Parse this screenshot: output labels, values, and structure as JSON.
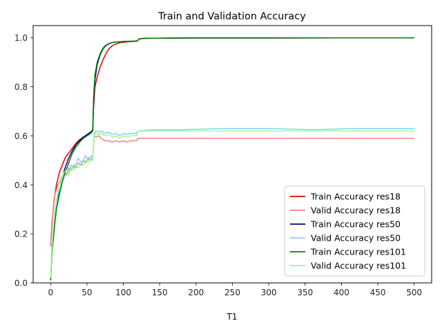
{
  "chart_data": {
    "type": "line",
    "title": "Train and Validation Accuracy",
    "xlabel": "T1",
    "ylabel": "",
    "xlim": [
      -24,
      524
    ],
    "ylim": [
      0,
      1.05
    ],
    "xticks": [
      0,
      50,
      100,
      150,
      200,
      250,
      300,
      350,
      400,
      450,
      500
    ],
    "yticks": [
      0.0,
      0.2,
      0.4,
      0.6,
      0.8,
      1.0
    ],
    "xtick_labels": [
      "0",
      "50",
      "100",
      "150",
      "200",
      "250",
      "300",
      "350",
      "400",
      "450",
      "500"
    ],
    "ytick_labels": [
      "0.0",
      "0.2",
      "0.4",
      "0.6",
      "0.8",
      "1.0"
    ],
    "grid": false,
    "legend_position": "lower-right",
    "series": [
      {
        "name": "Train Accuracy res18",
        "color": "#dd0000",
        "points": [
          [
            0,
            0.15
          ],
          [
            2,
            0.25
          ],
          [
            5,
            0.34
          ],
          [
            8,
            0.4
          ],
          [
            12,
            0.45
          ],
          [
            16,
            0.48
          ],
          [
            20,
            0.51
          ],
          [
            25,
            0.53
          ],
          [
            30,
            0.55
          ],
          [
            35,
            0.57
          ],
          [
            40,
            0.585
          ],
          [
            45,
            0.595
          ],
          [
            50,
            0.605
          ],
          [
            55,
            0.615
          ],
          [
            58,
            0.62
          ],
          [
            59,
            0.71
          ],
          [
            61,
            0.8
          ],
          [
            64,
            0.84
          ],
          [
            68,
            0.88
          ],
          [
            72,
            0.91
          ],
          [
            76,
            0.935
          ],
          [
            80,
            0.955
          ],
          [
            85,
            0.968
          ],
          [
            90,
            0.975
          ],
          [
            95,
            0.98
          ],
          [
            100,
            0.982
          ],
          [
            110,
            0.985
          ],
          [
            118,
            0.986
          ],
          [
            120,
            0.99
          ],
          [
            122,
            0.996
          ],
          [
            130,
            0.998
          ],
          [
            160,
            0.999
          ],
          [
            200,
            0.9995
          ],
          [
            300,
            0.9997
          ],
          [
            400,
            0.9998
          ],
          [
            500,
            0.9998
          ]
        ]
      },
      {
        "name": "Valid Accuracy res18",
        "color": "#f08080",
        "points": [
          [
            0,
            0.15
          ],
          [
            3,
            0.28
          ],
          [
            6,
            0.36
          ],
          [
            10,
            0.4
          ],
          [
            14,
            0.42
          ],
          [
            18,
            0.45
          ],
          [
            22,
            0.44
          ],
          [
            25,
            0.47
          ],
          [
            28,
            0.46
          ],
          [
            32,
            0.48
          ],
          [
            35,
            0.47
          ],
          [
            38,
            0.49
          ],
          [
            42,
            0.48
          ],
          [
            45,
            0.5
          ],
          [
            48,
            0.49
          ],
          [
            52,
            0.51
          ],
          [
            56,
            0.5
          ],
          [
            58,
            0.51
          ],
          [
            59,
            0.55
          ],
          [
            60,
            0.6
          ],
          [
            62,
            0.595
          ],
          [
            66,
            0.6
          ],
          [
            70,
            0.59
          ],
          [
            74,
            0.58
          ],
          [
            80,
            0.58
          ],
          [
            85,
            0.575
          ],
          [
            90,
            0.58
          ],
          [
            95,
            0.575
          ],
          [
            100,
            0.58
          ],
          [
            105,
            0.575
          ],
          [
            110,
            0.58
          ],
          [
            118,
            0.58
          ],
          [
            120,
            0.59
          ],
          [
            122,
            0.59
          ],
          [
            140,
            0.59
          ],
          [
            180,
            0.59
          ],
          [
            240,
            0.59
          ],
          [
            300,
            0.59
          ],
          [
            360,
            0.59
          ],
          [
            420,
            0.59
          ],
          [
            500,
            0.59
          ]
        ]
      },
      {
        "name": "Train Accuracy res50",
        "color": "#000080",
        "points": [
          [
            0,
            0.01
          ],
          [
            2,
            0.15
          ],
          [
            5,
            0.25
          ],
          [
            8,
            0.32
          ],
          [
            12,
            0.38
          ],
          [
            16,
            0.43
          ],
          [
            20,
            0.47
          ],
          [
            25,
            0.51
          ],
          [
            30,
            0.54
          ],
          [
            35,
            0.565
          ],
          [
            40,
            0.58
          ],
          [
            45,
            0.595
          ],
          [
            50,
            0.605
          ],
          [
            55,
            0.615
          ],
          [
            58,
            0.625
          ],
          [
            59,
            0.73
          ],
          [
            61,
            0.83
          ],
          [
            64,
            0.89
          ],
          [
            68,
            0.93
          ],
          [
            72,
            0.955
          ],
          [
            76,
            0.968
          ],
          [
            80,
            0.976
          ],
          [
            85,
            0.981
          ],
          [
            90,
            0.983
          ],
          [
            100,
            0.985
          ],
          [
            110,
            0.986
          ],
          [
            118,
            0.987
          ],
          [
            120,
            0.99
          ],
          [
            122,
            0.996
          ],
          [
            130,
            0.998
          ],
          [
            160,
            0.999
          ],
          [
            200,
            0.9995
          ],
          [
            300,
            0.9997
          ],
          [
            400,
            0.9998
          ],
          [
            500,
            0.9998
          ]
        ]
      },
      {
        "name": "Valid Accuracy res50",
        "color": "#87cefa",
        "points": [
          [
            0,
            0.02
          ],
          [
            3,
            0.18
          ],
          [
            6,
            0.28
          ],
          [
            10,
            0.36
          ],
          [
            14,
            0.4
          ],
          [
            18,
            0.44
          ],
          [
            22,
            0.46
          ],
          [
            25,
            0.45
          ],
          [
            28,
            0.48
          ],
          [
            32,
            0.47
          ],
          [
            35,
            0.49
          ],
          [
            38,
            0.51
          ],
          [
            42,
            0.49
          ],
          [
            45,
            0.5
          ],
          [
            48,
            0.52
          ],
          [
            52,
            0.5
          ],
          [
            56,
            0.52
          ],
          [
            58,
            0.51
          ],
          [
            59,
            0.56
          ],
          [
            60,
            0.61
          ],
          [
            62,
            0.62
          ],
          [
            66,
            0.615
          ],
          [
            70,
            0.62
          ],
          [
            74,
            0.61
          ],
          [
            80,
            0.615
          ],
          [
            85,
            0.605
          ],
          [
            90,
            0.61
          ],
          [
            95,
            0.6
          ],
          [
            100,
            0.61
          ],
          [
            105,
            0.605
          ],
          [
            110,
            0.61
          ],
          [
            118,
            0.61
          ],
          [
            120,
            0.62
          ],
          [
            122,
            0.62
          ],
          [
            140,
            0.625
          ],
          [
            180,
            0.625
          ],
          [
            240,
            0.63
          ],
          [
            300,
            0.63
          ],
          [
            360,
            0.625
          ],
          [
            420,
            0.63
          ],
          [
            500,
            0.63
          ]
        ]
      },
      {
        "name": "Train Accuracy res101",
        "color": "#008000",
        "points": [
          [
            0,
            0.01
          ],
          [
            2,
            0.12
          ],
          [
            5,
            0.22
          ],
          [
            8,
            0.3
          ],
          [
            12,
            0.36
          ],
          [
            16,
            0.41
          ],
          [
            20,
            0.45
          ],
          [
            25,
            0.49
          ],
          [
            30,
            0.53
          ],
          [
            35,
            0.555
          ],
          [
            40,
            0.575
          ],
          [
            45,
            0.59
          ],
          [
            50,
            0.6
          ],
          [
            55,
            0.61
          ],
          [
            58,
            0.62
          ],
          [
            59,
            0.75
          ],
          [
            61,
            0.85
          ],
          [
            64,
            0.9
          ],
          [
            68,
            0.935
          ],
          [
            72,
            0.958
          ],
          [
            76,
            0.97
          ],
          [
            80,
            0.977
          ],
          [
            85,
            0.981
          ],
          [
            90,
            0.983
          ],
          [
            100,
            0.985
          ],
          [
            110,
            0.986
          ],
          [
            118,
            0.987
          ],
          [
            120,
            0.99
          ],
          [
            122,
            0.996
          ],
          [
            130,
            0.998
          ],
          [
            160,
            0.999
          ],
          [
            200,
            0.9995
          ],
          [
            300,
            0.9997
          ],
          [
            400,
            0.9998
          ],
          [
            500,
            0.9998
          ]
        ]
      },
      {
        "name": "Valid Accuracy res101",
        "color": "#98fb98",
        "points": [
          [
            0,
            0.02
          ],
          [
            3,
            0.2
          ],
          [
            6,
            0.3
          ],
          [
            10,
            0.37
          ],
          [
            14,
            0.41
          ],
          [
            18,
            0.45
          ],
          [
            22,
            0.46
          ],
          [
            25,
            0.44
          ],
          [
            28,
            0.47
          ],
          [
            32,
            0.46
          ],
          [
            35,
            0.48
          ],
          [
            38,
            0.47
          ],
          [
            42,
            0.49
          ],
          [
            45,
            0.48
          ],
          [
            48,
            0.5
          ],
          [
            52,
            0.49
          ],
          [
            56,
            0.51
          ],
          [
            58,
            0.5
          ],
          [
            59,
            0.55
          ],
          [
            60,
            0.6
          ],
          [
            62,
            0.61
          ],
          [
            66,
            0.605
          ],
          [
            70,
            0.61
          ],
          [
            74,
            0.6
          ],
          [
            80,
            0.605
          ],
          [
            85,
            0.595
          ],
          [
            90,
            0.6
          ],
          [
            95,
            0.59
          ],
          [
            100,
            0.6
          ],
          [
            105,
            0.595
          ],
          [
            110,
            0.6
          ],
          [
            118,
            0.6
          ],
          [
            120,
            0.62
          ],
          [
            122,
            0.62
          ],
          [
            140,
            0.62
          ],
          [
            180,
            0.62
          ],
          [
            240,
            0.62
          ],
          [
            300,
            0.62
          ],
          [
            360,
            0.62
          ],
          [
            420,
            0.62
          ],
          [
            500,
            0.62
          ]
        ]
      }
    ]
  }
}
